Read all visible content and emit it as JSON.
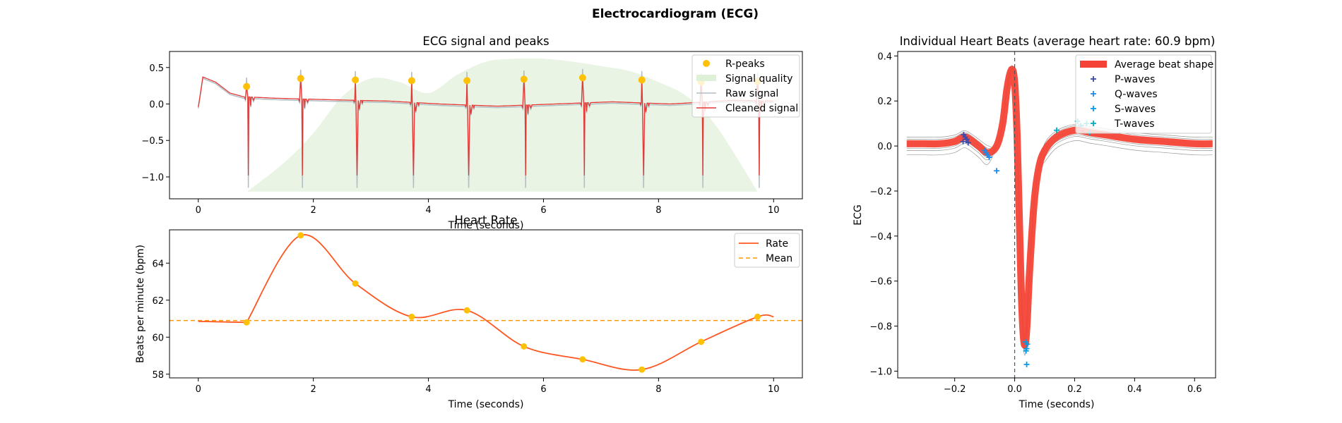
{
  "figure": {
    "suptitle": "Electrocardiogram (ECG)",
    "colors": {
      "rpeaks": "#FFC107",
      "quality": "#DFF0D8",
      "raw": "#B0BEC5",
      "cleaned": "#E53935",
      "rate": "#FF5722",
      "mean": "#FF9800",
      "avg_beat": "#F44336",
      "p_waves": "#3949AB",
      "q_waves": "#1E88E5",
      "s_waves": "#039BE5",
      "t_waves": "#00ACC1"
    }
  },
  "chart_data": [
    {
      "id": "ecg",
      "type": "line",
      "title": "ECG signal and peaks",
      "xlabel": "Time (seconds)",
      "ylabel": "",
      "xlim": [
        -0.5,
        10.5
      ],
      "ylim": [
        -1.3,
        0.72
      ],
      "xticks": [
        0,
        2,
        4,
        6,
        8,
        10
      ],
      "yticks": [
        0.5,
        0.0,
        -0.5,
        -1.0
      ],
      "ytick_labels": [
        "0.5",
        "0.0",
        "−0.5",
        "−1.0"
      ],
      "legend": {
        "position": "top-right",
        "entries": [
          "R-peaks",
          "Signal quality",
          "Raw signal",
          "Cleaned signal"
        ]
      },
      "r_peaks": {
        "x": [
          0.84,
          1.78,
          2.73,
          3.71,
          4.67,
          5.66,
          6.68,
          7.71,
          8.74,
          9.72
        ],
        "y": [
          0.24,
          0.35,
          0.33,
          0.32,
          0.32,
          0.34,
          0.36,
          0.33,
          0.3,
          0.31
        ]
      },
      "quality_curve": {
        "x": [
          0.85,
          1.5,
          2.0,
          2.5,
          3.0,
          3.5,
          4.0,
          4.5,
          5.0,
          5.5,
          6.0,
          6.5,
          7.0,
          7.5,
          8.0,
          8.5,
          9.0,
          9.72
        ],
        "y": [
          -1.2,
          -0.8,
          -0.4,
          0.1,
          0.35,
          0.3,
          0.15,
          0.4,
          0.58,
          0.62,
          0.62,
          0.58,
          0.52,
          0.45,
          0.3,
          0.1,
          -0.3,
          -1.2
        ]
      },
      "baseline": {
        "x": [
          0,
          0.08,
          0.3,
          0.55,
          0.78,
          1.3,
          2.2,
          3.3,
          4.2,
          5.2,
          6.2,
          7.2,
          8.2,
          9.3,
          10.0
        ],
        "y": [
          -0.04,
          0.37,
          0.3,
          0.15,
          0.1,
          0.08,
          0.06,
          0.04,
          0.0,
          -0.03,
          0.0,
          0.03,
          0.0,
          0.05,
          0.04
        ]
      },
      "series": [
        {
          "name": "Raw signal",
          "qrs_min": -1.15,
          "offset": -0.02
        },
        {
          "name": "Cleaned signal",
          "qrs_min": -0.98,
          "offset": 0.0
        }
      ]
    },
    {
      "id": "hr",
      "type": "line",
      "title": "Heart Rate",
      "xlabel": "Time (seconds)",
      "ylabel": "Beats per minute (bpm)",
      "xlim": [
        -0.5,
        10.5
      ],
      "ylim": [
        57.8,
        65.8
      ],
      "xticks": [
        0,
        2,
        4,
        6,
        8,
        10
      ],
      "yticks": [
        58,
        60,
        62,
        64
      ],
      "legend": {
        "position": "top-right",
        "entries": [
          "Rate",
          "Mean"
        ]
      },
      "rate_points": {
        "x": [
          0.84,
          1.78,
          2.73,
          3.71,
          4.67,
          5.66,
          6.68,
          7.71,
          8.74,
          9.72
        ],
        "y": [
          60.8,
          65.5,
          62.9,
          61.1,
          61.45,
          59.5,
          58.8,
          58.25,
          59.75,
          61.1
        ]
      },
      "rate_start": [
        0,
        60.85
      ],
      "rate_end": [
        10.0,
        61.1
      ],
      "mean": 60.9
    },
    {
      "id": "beats",
      "type": "line",
      "title": "Individual Heart Beats (average heart rate: 60.9 bpm)",
      "xlabel": "Time (seconds)",
      "ylabel": "ECG",
      "xlim": [
        -0.39,
        0.67
      ],
      "ylim": [
        -1.03,
        0.42
      ],
      "xticks": [
        -0.2,
        0.0,
        0.2,
        0.4,
        0.6
      ],
      "xtick_labels": [
        "−0.2",
        "0.0",
        "0.2",
        "0.4",
        "0.6"
      ],
      "yticks": [
        0.4,
        0.2,
        0.0,
        -0.2,
        -0.4,
        -0.6,
        -0.8,
        -1.0
      ],
      "ytick_labels": [
        "0.4",
        "0.2",
        "0.0",
        "−0.2",
        "−0.4",
        "−0.6",
        "−0.8",
        "−1.0"
      ],
      "legend": {
        "position": "top-right",
        "entries": [
          "Average beat shape",
          "P-waves",
          "Q-waves",
          "S-waves",
          "T-waves"
        ]
      },
      "average_beat": {
        "x": [
          -0.36,
          -0.3,
          -0.25,
          -0.2,
          -0.17,
          -0.15,
          -0.12,
          -0.09,
          -0.06,
          -0.04,
          -0.025,
          -0.01,
          0.0,
          0.008,
          0.016,
          0.024,
          0.032,
          0.04,
          0.05,
          0.065,
          0.08,
          0.1,
          0.14,
          0.2,
          0.25,
          0.3,
          0.4,
          0.5,
          0.6,
          0.66
        ],
        "y": [
          0.01,
          0.01,
          0.01,
          0.02,
          0.04,
          0.03,
          0.0,
          -0.03,
          0.0,
          0.1,
          0.26,
          0.34,
          0.28,
          0.05,
          -0.35,
          -0.72,
          -0.88,
          -0.82,
          -0.55,
          -0.25,
          -0.1,
          -0.02,
          0.04,
          0.07,
          0.06,
          0.05,
          0.03,
          0.02,
          0.01,
          0.01
        ]
      },
      "p_waves": {
        "x": [
          -0.17,
          -0.165,
          -0.16,
          -0.172,
          -0.155
        ],
        "y": [
          0.05,
          0.04,
          0.03,
          0.02,
          0.015
        ]
      },
      "q_waves": {
        "x": [
          -0.095,
          -0.09,
          -0.085,
          -0.1,
          -0.06
        ],
        "y": [
          -0.03,
          -0.04,
          -0.05,
          -0.02,
          -0.11
        ]
      },
      "s_waves": {
        "x": [
          0.04,
          0.038,
          0.042,
          0.036,
          0.04
        ],
        "y": [
          -0.9,
          -0.91,
          -0.88,
          -0.87,
          -0.97
        ]
      },
      "t_waves": {
        "x": [
          0.14,
          0.21,
          0.25,
          0.22,
          0.24
        ],
        "y": [
          0.07,
          0.11,
          0.06,
          0.09,
          0.1
        ]
      },
      "vline_x": 0.0
    }
  ]
}
